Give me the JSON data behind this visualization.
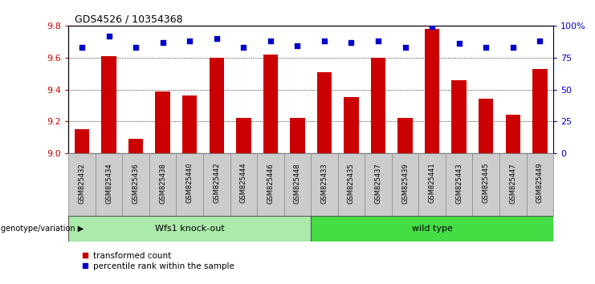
{
  "title": "GDS4526 / 10354368",
  "categories": [
    "GSM825432",
    "GSM825434",
    "GSM825436",
    "GSM825438",
    "GSM825440",
    "GSM825442",
    "GSM825444",
    "GSM825446",
    "GSM825448",
    "GSM825433",
    "GSM825435",
    "GSM825437",
    "GSM825439",
    "GSM825441",
    "GSM825443",
    "GSM825445",
    "GSM825447",
    "GSM825449"
  ],
  "bar_values": [
    9.15,
    9.61,
    9.09,
    9.39,
    9.36,
    9.6,
    9.22,
    9.62,
    9.22,
    9.51,
    9.35,
    9.6,
    9.22,
    9.78,
    9.46,
    9.34,
    9.24,
    9.53
  ],
  "dot_values": [
    83,
    92,
    83,
    87,
    88,
    90,
    83,
    88,
    84,
    88,
    87,
    88,
    83,
    99,
    86,
    83,
    83,
    88
  ],
  "ylim": [
    9.0,
    9.8
  ],
  "y2lim": [
    0,
    100
  ],
  "yticks": [
    9.0,
    9.2,
    9.4,
    9.6,
    9.8
  ],
  "y2ticks": [
    0,
    25,
    50,
    75,
    100
  ],
  "y2ticklabels": [
    "0",
    "25",
    "50",
    "75",
    "100%"
  ],
  "bar_color": "#cc0000",
  "dot_color": "#0000cc",
  "group1_label": "Wfs1 knock-out",
  "group2_label": "wild type",
  "group1_color": "#aaeaaa",
  "group2_color": "#44dd44",
  "group1_count": 9,
  "group2_count": 9,
  "xlabel_left": "genotype/variation",
  "legend_bar": "transformed count",
  "legend_dot": "percentile rank within the sample",
  "cell_bg_color": "#cccccc",
  "cell_border_color": "#888888"
}
